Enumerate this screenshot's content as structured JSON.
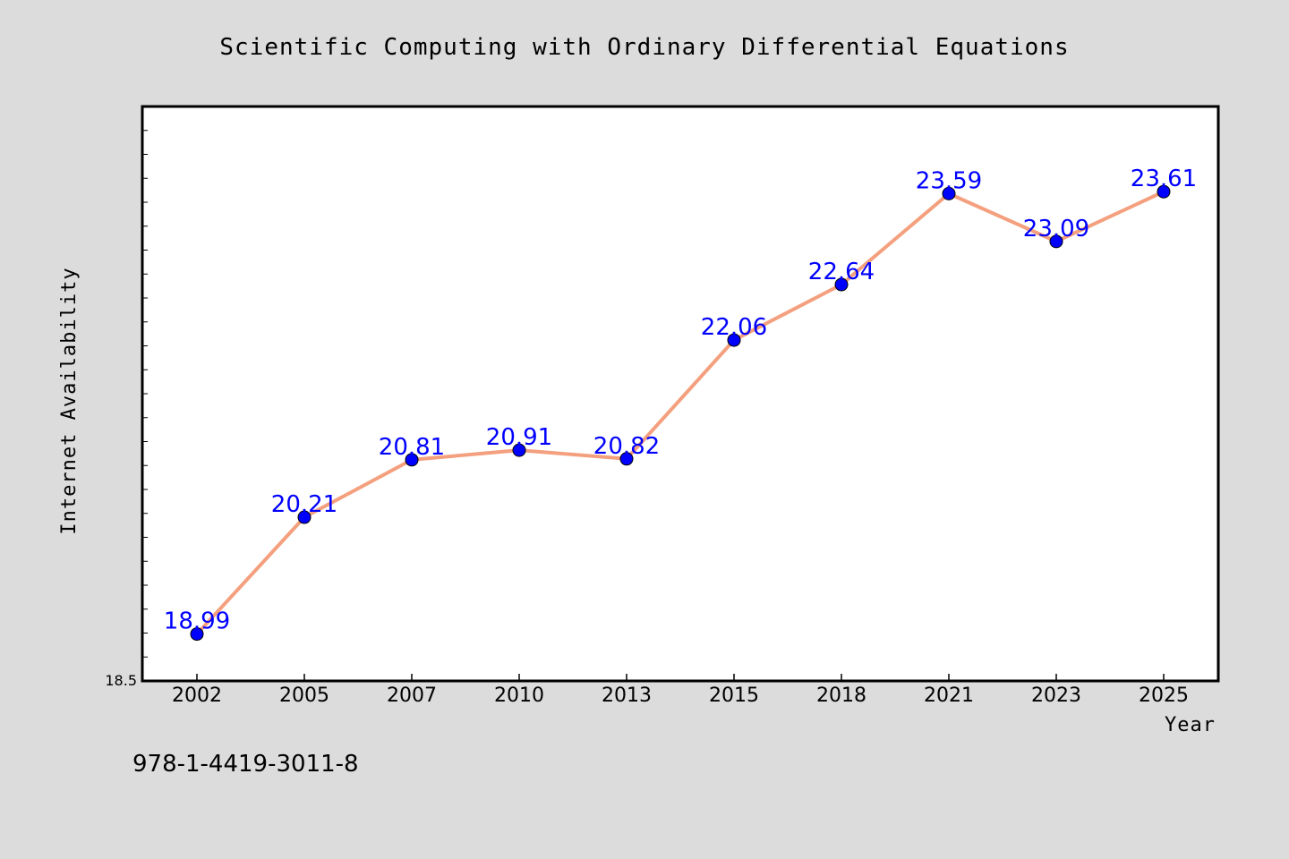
{
  "colors": {
    "background": "#dcdcdc",
    "plot_background": "#ffffff",
    "line": "#f4a07e",
    "marker": "#0000ff",
    "data_label": "#0000ff",
    "axis": "#000000"
  },
  "footer": {
    "isbn": "978-1-4419-3011-8"
  },
  "chart_data": {
    "type": "line",
    "title": "Scientific Computing with Ordinary Differential Equations",
    "xlabel": "Year",
    "ylabel": "Internet Availability",
    "categories": [
      "2002",
      "2005",
      "2007",
      "2010",
      "2013",
      "2015",
      "2018",
      "2021",
      "2023",
      "2025"
    ],
    "series": [
      {
        "values": [
          18.99,
          20.21,
          20.81,
          20.91,
          20.82,
          22.06,
          22.64,
          23.59,
          23.09,
          23.61
        ]
      }
    ],
    "data_labels": [
      "18.99",
      "20.21",
      "20.81",
      "20.91",
      "20.82",
      "22.06",
      "22.64",
      "23.59",
      "23.09",
      "23.61"
    ],
    "ylim": [
      18.5,
      24.5
    ],
    "y_min_label": "18.5",
    "grid": false,
    "legend": "none"
  }
}
